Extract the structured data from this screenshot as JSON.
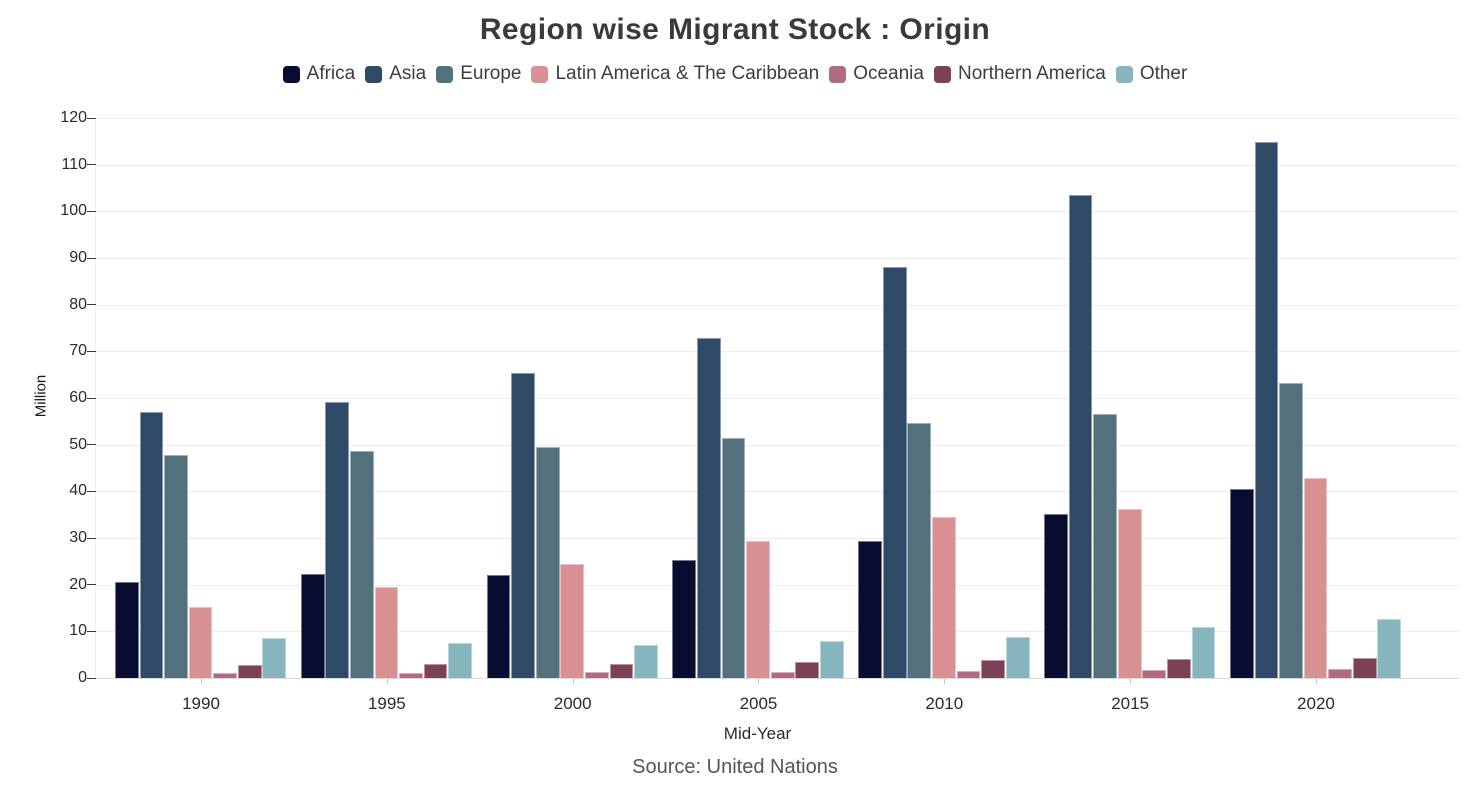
{
  "chart_data": {
    "type": "bar",
    "title": "Region wise Migrant Stock : Origin",
    "xlabel": "Mid-Year",
    "ylabel": "Million",
    "source": "Source: United Nations",
    "legend_position": "top",
    "grid": "horizontal",
    "ylim": [
      0,
      120
    ],
    "ytick_step": 10,
    "categories": [
      "1990",
      "1995",
      "2000",
      "2005",
      "2010",
      "2015",
      "2020"
    ],
    "series": [
      {
        "name": "Africa",
        "color": "#070c30",
        "values": [
          20.6,
          22.2,
          22.0,
          25.3,
          29.3,
          35.1,
          40.5
        ]
      },
      {
        "name": "Asia",
        "color": "#2f4a66",
        "values": [
          57.0,
          59.1,
          65.4,
          72.8,
          88.0,
          103.4,
          114.9
        ]
      },
      {
        "name": "Europe",
        "color": "#53707d",
        "values": [
          47.7,
          48.7,
          49.6,
          51.4,
          54.7,
          56.5,
          63.2
        ]
      },
      {
        "name": "Latin America & The Caribbean",
        "color": "#d89093",
        "values": [
          15.2,
          19.6,
          24.5,
          29.4,
          34.6,
          36.3,
          42.8
        ]
      },
      {
        "name": "Oceania",
        "color": "#b16b80",
        "values": [
          1.0,
          1.1,
          1.2,
          1.3,
          1.6,
          1.8,
          1.9
        ]
      },
      {
        "name": "Northern America",
        "color": "#7d4155",
        "values": [
          2.8,
          2.9,
          3.0,
          3.4,
          3.9,
          4.0,
          4.3
        ]
      },
      {
        "name": "Other",
        "color": "#87b5bd",
        "values": [
          8.6,
          7.4,
          7.0,
          7.9,
          8.8,
          11.0,
          12.7
        ]
      }
    ]
  }
}
